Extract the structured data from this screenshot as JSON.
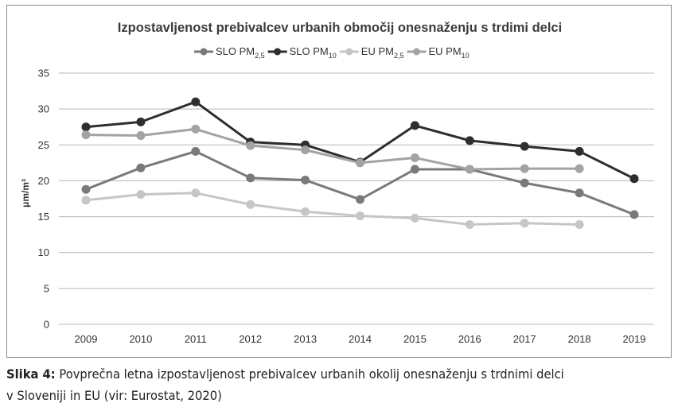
{
  "chart_data": {
    "type": "line",
    "title": "Izpostavljenost prebivalcev urbanih območij onesnaženju s trdimi delci",
    "ylabel": "μm/m³",
    "ylim": [
      0,
      35
    ],
    "yticks": [
      0,
      5,
      10,
      15,
      20,
      25,
      30,
      35
    ],
    "grid": true,
    "legend_position": "top",
    "categories": [
      "2009",
      "2010",
      "2011",
      "2012",
      "2013",
      "2014",
      "2015",
      "2016",
      "2017",
      "2018",
      "2019"
    ],
    "series": [
      {
        "name": "SLO PM",
        "subscript": "2,5",
        "color": "#7a7a7a",
        "values": [
          18.8,
          21.8,
          24.1,
          20.4,
          20.1,
          17.4,
          21.6,
          21.6,
          19.7,
          18.3,
          15.3
        ]
      },
      {
        "name": "SLO PM",
        "subscript": "10",
        "color": "#2e2e2e",
        "values": [
          27.5,
          28.2,
          31.0,
          25.4,
          25.0,
          22.6,
          27.7,
          25.6,
          24.8,
          24.1,
          20.3
        ]
      },
      {
        "name": "EU PM",
        "subscript": "2,5",
        "color": "#c6c6c6",
        "values": [
          17.3,
          18.1,
          18.3,
          16.7,
          15.7,
          15.1,
          14.8,
          13.9,
          14.1,
          13.9,
          null
        ]
      },
      {
        "name": "EU PM",
        "subscript": "10",
        "color": "#a3a3a3",
        "values": [
          26.4,
          26.3,
          27.2,
          24.9,
          24.3,
          22.5,
          23.2,
          21.6,
          21.7,
          21.7,
          null
        ]
      }
    ]
  },
  "caption": {
    "label": "Slika 4:",
    "line1": " Povprečna letna izpostavljenost prebivalcev urbanih okolij onesnaženju s trdnimi delci",
    "line2": "v Sloveniji in EU (vir: Eurostat, 2020)"
  }
}
